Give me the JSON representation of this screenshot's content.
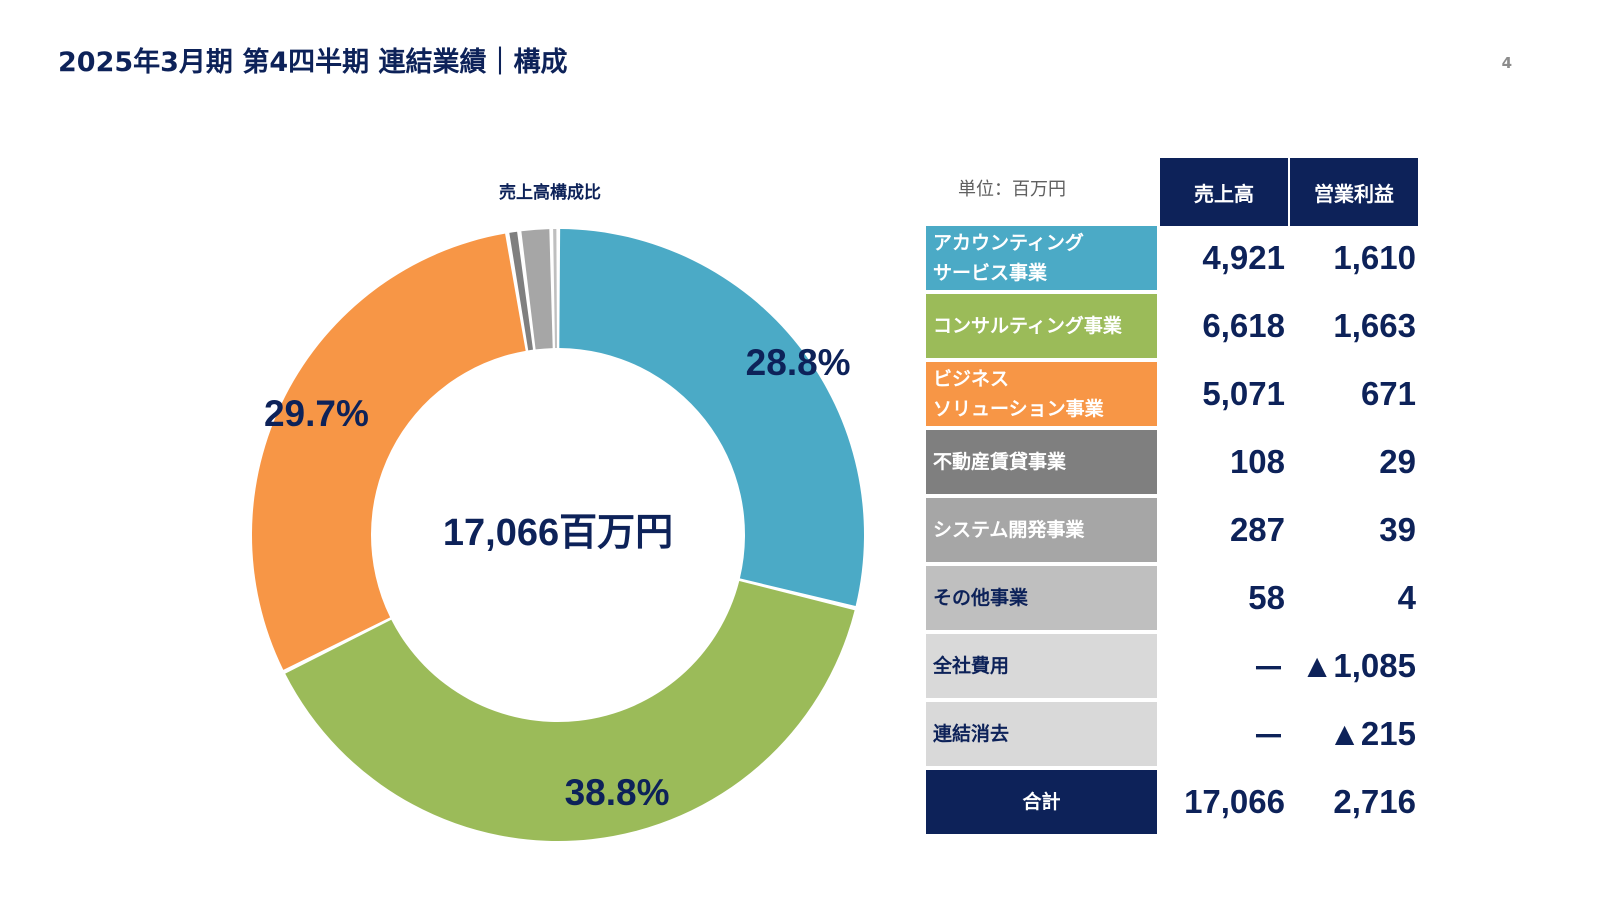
{
  "page": {
    "title": "2025年3月期 第4四半期 連結業績｜構成",
    "page_number": "4"
  },
  "chart_data": {
    "type": "pie",
    "title": "売上高構成比",
    "center_label": "17,066百万円",
    "total": 17066,
    "unit": "百万円",
    "slices": [
      {
        "name": "アカウンティングサービス事業",
        "value": 4921,
        "label": "28.8%",
        "color": "#4baac6"
      },
      {
        "name": "コンサルティング事業",
        "value": 6618,
        "label": "38.8%",
        "color": "#9bbb59"
      },
      {
        "name": "ビジネスソリューション事業",
        "value": 5071,
        "label": "29.7%",
        "color": "#f79646"
      },
      {
        "name": "不動産賃貸事業",
        "value": 108,
        "label": "",
        "color": "#7f7f7f"
      },
      {
        "name": "システム開発事業",
        "value": 287,
        "label": "",
        "color": "#a6a6a6"
      },
      {
        "name": "その他事業",
        "value": 58,
        "label": "",
        "color": "#bfbfbf"
      }
    ]
  },
  "table": {
    "unit": "単位：百万円",
    "headers": [
      "売上高",
      "営業利益"
    ],
    "header_color": "#0d2259",
    "rows": [
      {
        "label": "アカウンティング\nサービス事業",
        "sales": "4,921",
        "op": "1,610",
        "bg": "#4baac6",
        "fg": "#ffffff"
      },
      {
        "label": "コンサルティング事業",
        "sales": "6,618",
        "op": "1,663",
        "bg": "#9bbb59",
        "fg": "#ffffff"
      },
      {
        "label": "ビジネス\nソリューション事業",
        "sales": "5,071",
        "op": "671",
        "bg": "#f79646",
        "fg": "#ffffff"
      },
      {
        "label": "不動産賃貸事業",
        "sales": "108",
        "op": "29",
        "bg": "#7f7f7f",
        "fg": "#ffffff"
      },
      {
        "label": "システム開発事業",
        "sales": "287",
        "op": "39",
        "bg": "#a6a6a6",
        "fg": "#ffffff"
      },
      {
        "label": "その他事業",
        "sales": "58",
        "op": "4",
        "bg": "#bfbfbf",
        "fg": "#0d2259"
      },
      {
        "label": "全社費用",
        "sales": "－",
        "op": "▲1,085",
        "bg": "#d9d9d9",
        "fg": "#0d2259"
      },
      {
        "label": "連結消去",
        "sales": "－",
        "op": "▲215",
        "bg": "#d9d9d9",
        "fg": "#0d2259"
      }
    ],
    "total": {
      "label": "合計",
      "sales": "17,066",
      "op": "2,716",
      "bg": "#0d2259",
      "fg": "#ffffff"
    }
  }
}
